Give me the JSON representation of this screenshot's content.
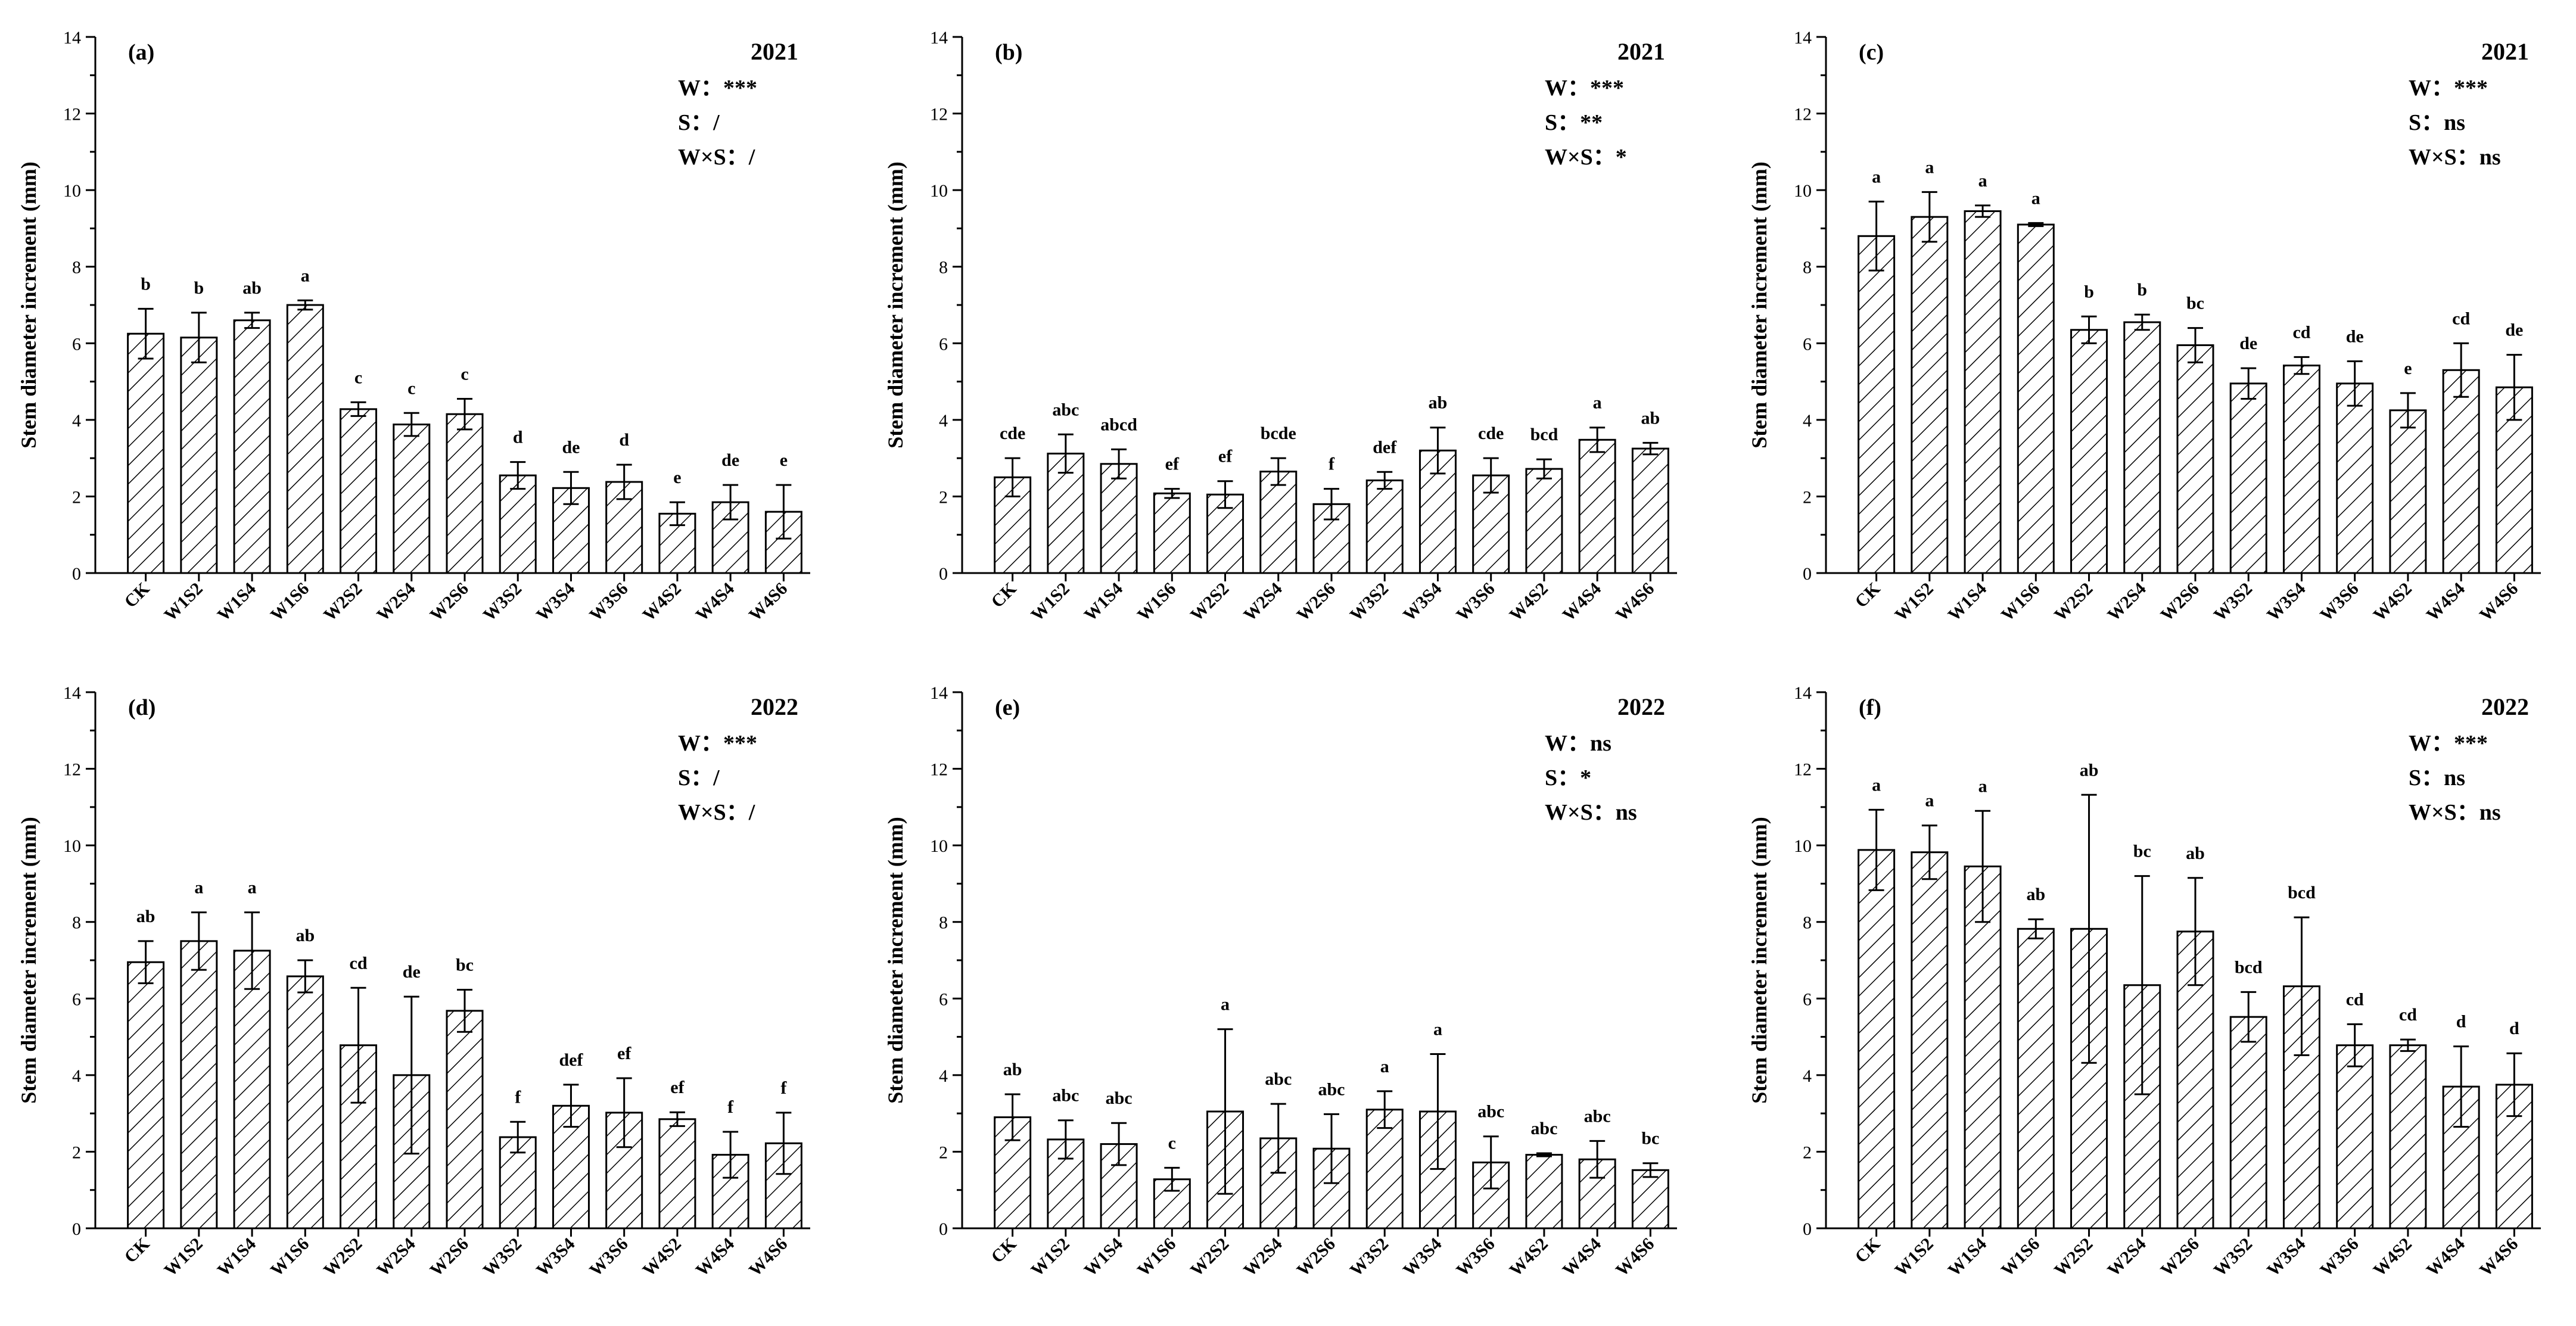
{
  "categories": [
    "CK",
    "W1S2",
    "W1S4",
    "W1S6",
    "W2S2",
    "W2S4",
    "W2S6",
    "W3S2",
    "W3S4",
    "W3S6",
    "W4S2",
    "W4S4",
    "W4S6"
  ],
  "chart_data": [
    {
      "type": "bar",
      "panel": "(a)",
      "year": "2021",
      "stats": [
        "W：***",
        "S：/",
        "W×S：/"
      ],
      "ylabel": "Stem diameter increment (mm)",
      "ylim": [
        0,
        14
      ],
      "yticks": [
        0,
        2,
        4,
        6,
        8,
        10,
        12,
        14
      ],
      "values": [
        6.25,
        6.15,
        6.6,
        7.0,
        4.28,
        3.88,
        4.15,
        2.55,
        2.22,
        2.38,
        1.55,
        1.85,
        1.6
      ],
      "errors": [
        0.65,
        0.65,
        0.2,
        0.12,
        0.18,
        0.3,
        0.4,
        0.35,
        0.42,
        0.45,
        0.3,
        0.45,
        0.7
      ],
      "letters": [
        "b",
        "b",
        "ab",
        "a",
        "c",
        "c",
        "c",
        "d",
        "de",
        "d",
        "e",
        "de",
        "e"
      ]
    },
    {
      "type": "bar",
      "panel": "(b)",
      "year": "2021",
      "stats": [
        "W：***",
        "S：**",
        "W×S：*"
      ],
      "ylabel": "Stem diameter increment (mm)",
      "ylim": [
        0,
        14
      ],
      "yticks": [
        0,
        2,
        4,
        6,
        8,
        10,
        12,
        14
      ],
      "values": [
        2.5,
        3.12,
        2.85,
        2.08,
        2.05,
        2.65,
        1.8,
        2.42,
        3.2,
        2.55,
        2.72,
        3.48,
        3.25
      ],
      "errors": [
        0.5,
        0.5,
        0.38,
        0.12,
        0.35,
        0.35,
        0.4,
        0.22,
        0.6,
        0.45,
        0.25,
        0.32,
        0.15
      ],
      "letters": [
        "cde",
        "abc",
        "abcd",
        "ef",
        "ef",
        "bcde",
        "f",
        "def",
        "ab",
        "cde",
        "bcd",
        "a",
        "ab"
      ]
    },
    {
      "type": "bar",
      "panel": "(c)",
      "year": "2021",
      "stats": [
        "W：***",
        "S：ns",
        "W×S：ns"
      ],
      "ylabel": "Stem diameter increment (mm)",
      "ylim": [
        0,
        14
      ],
      "yticks": [
        0,
        2,
        4,
        6,
        8,
        10,
        12,
        14
      ],
      "values": [
        8.8,
        9.3,
        9.45,
        9.1,
        6.35,
        6.55,
        5.95,
        4.95,
        5.42,
        4.95,
        4.25,
        5.3,
        4.85
      ],
      "errors": [
        0.9,
        0.65,
        0.15,
        0.04,
        0.35,
        0.2,
        0.45,
        0.4,
        0.22,
        0.58,
        0.45,
        0.7,
        0.85
      ],
      "letters": [
        "a",
        "a",
        "a",
        "a",
        "b",
        "b",
        "bc",
        "de",
        "cd",
        "de",
        "e",
        "cd",
        "de"
      ]
    },
    {
      "type": "bar",
      "panel": "(d)",
      "year": "2022",
      "stats": [
        "W：***",
        "S：/",
        "W×S：/"
      ],
      "ylabel": "Stem diameter increment (mm)",
      "ylim": [
        0,
        14
      ],
      "yticks": [
        0,
        2,
        4,
        6,
        8,
        10,
        12,
        14
      ],
      "values": [
        6.95,
        7.5,
        7.25,
        6.58,
        4.78,
        4.0,
        5.68,
        2.38,
        3.2,
        3.02,
        2.85,
        1.92,
        2.22
      ],
      "errors": [
        0.55,
        0.75,
        1.0,
        0.42,
        1.5,
        2.05,
        0.55,
        0.4,
        0.55,
        0.9,
        0.18,
        0.6,
        0.8
      ],
      "letters": [
        "ab",
        "a",
        "a",
        "ab",
        "cd",
        "de",
        "bc",
        "f",
        "def",
        "ef",
        "ef",
        "f",
        "f"
      ]
    },
    {
      "type": "bar",
      "panel": "(e)",
      "year": "2022",
      "stats": [
        "W：ns",
        "S：*",
        "W×S：ns"
      ],
      "ylabel": "Stem diameter increment (mm)",
      "ylim": [
        0,
        14
      ],
      "yticks": [
        0,
        2,
        4,
        6,
        8,
        10,
        12,
        14
      ],
      "values": [
        2.9,
        2.32,
        2.2,
        1.28,
        3.05,
        2.35,
        2.08,
        3.1,
        3.05,
        1.72,
        1.92,
        1.8,
        1.52
      ],
      "errors": [
        0.6,
        0.5,
        0.55,
        0.3,
        2.15,
        0.9,
        0.9,
        0.48,
        1.5,
        0.68,
        0.04,
        0.48,
        0.18
      ],
      "letters": [
        "ab",
        "abc",
        "abc",
        "c",
        "a",
        "abc",
        "abc",
        "a",
        "a",
        "abc",
        "abc",
        "abc",
        "bc"
      ]
    },
    {
      "type": "bar",
      "panel": "(f)",
      "year": "2022",
      "stats": [
        "W：***",
        "S：ns",
        "W×S：ns"
      ],
      "ylabel": "Stem diameter increment (mm)",
      "ylim": [
        0,
        14
      ],
      "yticks": [
        0,
        2,
        4,
        6,
        8,
        10,
        12,
        14
      ],
      "values": [
        9.88,
        9.82,
        9.45,
        7.82,
        7.82,
        6.35,
        7.75,
        5.52,
        6.32,
        4.78,
        4.78,
        3.7,
        3.75
      ],
      "errors": [
        1.05,
        0.7,
        1.45,
        0.25,
        3.5,
        2.85,
        1.4,
        0.65,
        1.8,
        0.55,
        0.15,
        1.05,
        0.82
      ],
      "letters": [
        "a",
        "a",
        "a",
        "ab",
        "ab",
        "bc",
        "ab",
        "bcd",
        "bcd",
        "cd",
        "cd",
        "d",
        "d"
      ]
    }
  ]
}
